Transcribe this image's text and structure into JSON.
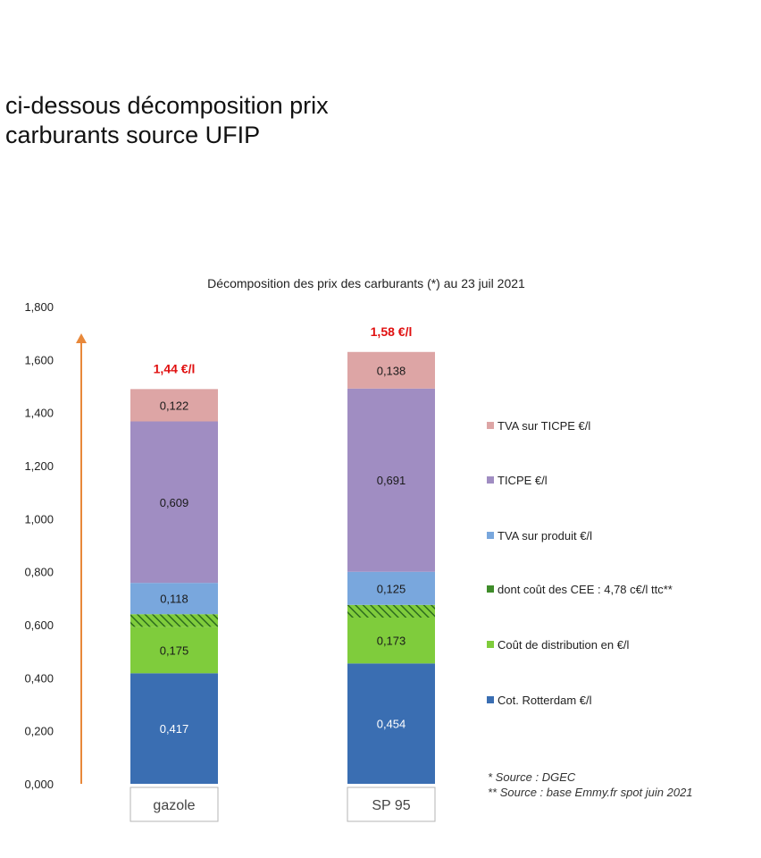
{
  "caption": {
    "line1": "ci-dessous décomposition prix",
    "line2": "carburants source UFIP"
  },
  "chart_data": {
    "type": "bar",
    "stacked": true,
    "title": "Décomposition des prix des carburants (*) au 23 juil 2021",
    "categories": [
      "gazole",
      "SP 95"
    ],
    "totals": [
      "1,44 €/l",
      "1,58 €/l"
    ],
    "ylim": [
      0,
      1.8
    ],
    "yticks": [
      "0,000",
      "0,200",
      "0,400",
      "0,600",
      "0,800",
      "1,000",
      "1,200",
      "1,400",
      "1,600",
      "1,800"
    ],
    "grid": false,
    "legend_position": "right",
    "series": [
      {
        "name": "Cot. Rotterdam €/l",
        "values": [
          0.417,
          0.454
        ],
        "labels": [
          "0,417",
          "0,454"
        ],
        "color": "#3a6eb2"
      },
      {
        "name": "Coût de distribution en €/l",
        "values": [
          0.175,
          0.173
        ],
        "labels": [
          "0,175",
          "0,173"
        ],
        "color": "#7fcc3c"
      },
      {
        "name": "dont coût des CEE : 4,78 c€/l ttc**",
        "values": [
          0.0478,
          0.0478
        ],
        "labels": [
          "",
          ""
        ],
        "color": "#3f8c2a",
        "pattern": "hatched"
      },
      {
        "name": "TVA sur produit €/l",
        "values": [
          0.118,
          0.125
        ],
        "labels": [
          "0,118",
          "0,125"
        ],
        "color": "#79a7dd"
      },
      {
        "name": "TICPE €/l",
        "values": [
          0.609,
          0.691
        ],
        "labels": [
          "0,609",
          "0,691"
        ],
        "color": "#a08dc2"
      },
      {
        "name": "TVA sur TICPE €/l",
        "values": [
          0.122,
          0.138
        ],
        "labels": [
          "0,122",
          "0,138"
        ],
        "color": "#dda5a5"
      }
    ],
    "legend_order": [
      5,
      4,
      3,
      2,
      1,
      0
    ],
    "footnotes": [
      "* Source : DGEC",
      "** Source : base Emmy.fr spot juin 2021"
    ],
    "colors": {
      "axis_arrow": "#e8883a",
      "total_label": "#e01010",
      "text": "#222222"
    }
  }
}
